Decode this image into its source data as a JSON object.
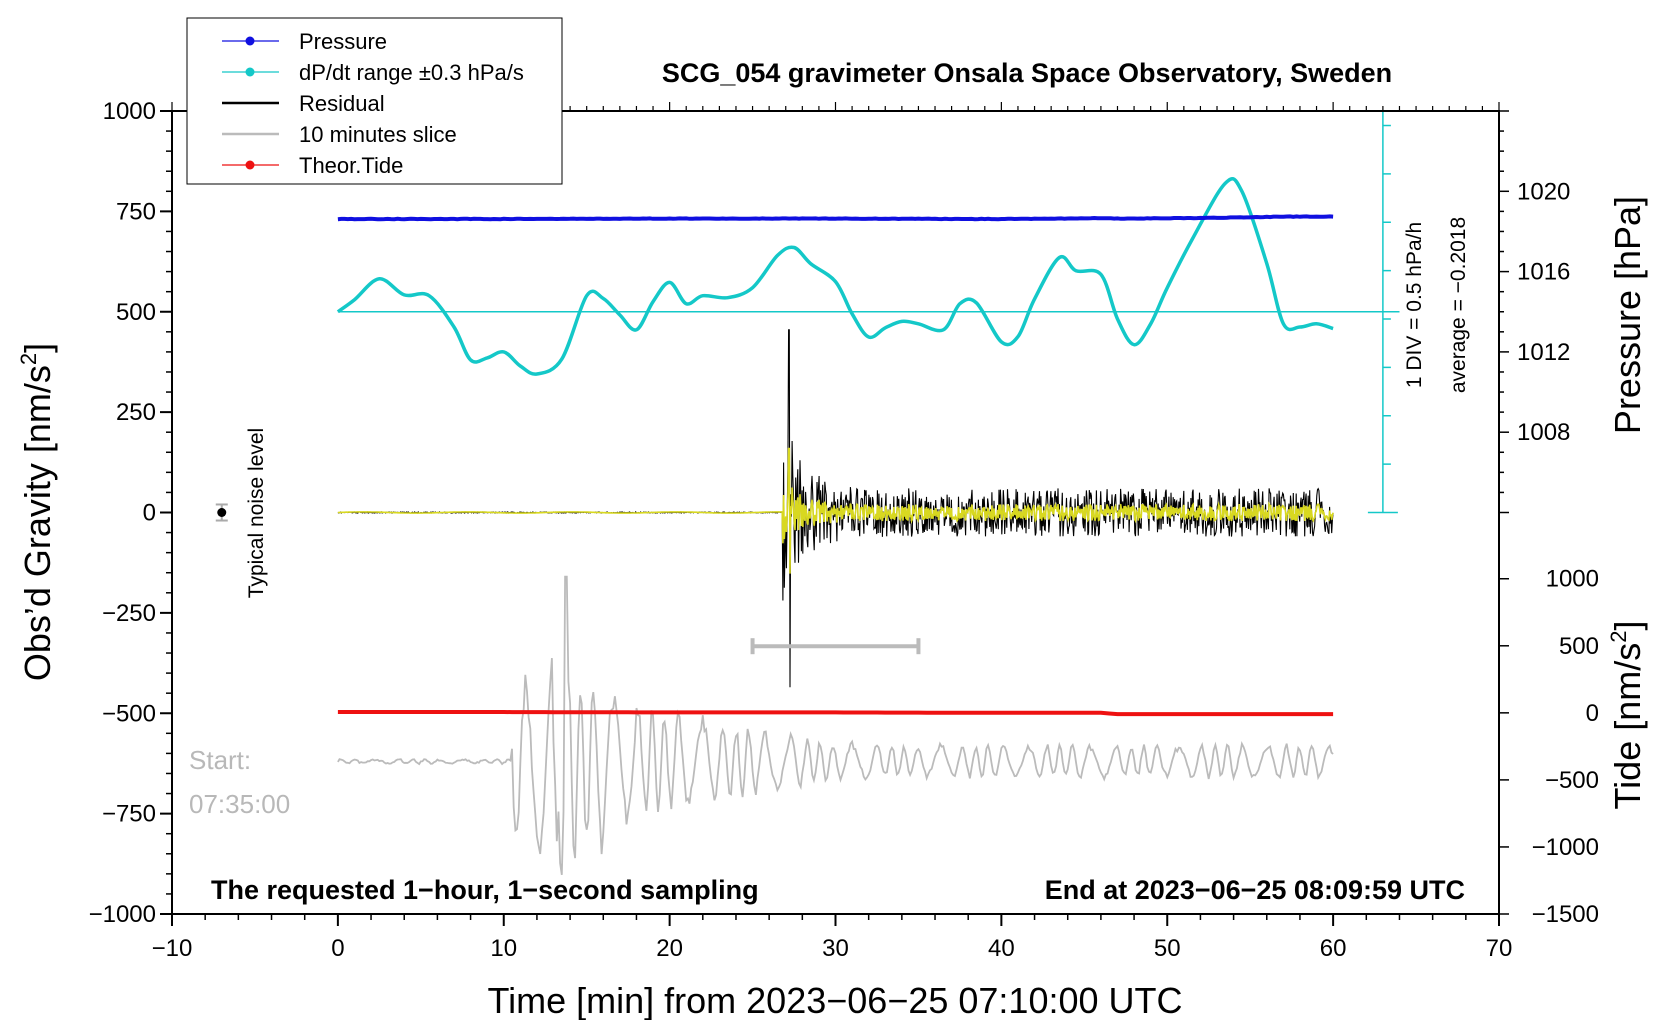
{
  "chart_data": {
    "type": "line",
    "title": "SCG_054 gravimeter Onsala Space Observatory, Sweden",
    "xlabel": "Time [min] from 2023−06−25 07:10:00 UTC",
    "ylabel_left": "Obs’d Gravity [nm/s",
    "ylabel_left_sup": "2",
    "ylabel_left_close": "]",
    "ylabel_right_top": "Pressure [hPa]",
    "ylabel_right_bottom": "Tide [nm/s",
    "ylabel_right_bottom_sup": "2",
    "ylabel_right_bottom_close": "]",
    "xlim": [
      -10,
      70
    ],
    "ylim_left": [
      -1000,
      1000
    ],
    "x_ticks": [
      -10,
      0,
      10,
      20,
      30,
      40,
      50,
      60,
      70
    ],
    "x_tick_labels": [
      "−10",
      "0",
      "10",
      "20",
      "30",
      "40",
      "50",
      "60",
      "70"
    ],
    "y_left_ticks": [
      1000,
      750,
      500,
      250,
      0,
      -250,
      -500,
      -750,
      -1000
    ],
    "y_left_tick_labels": [
      "1000",
      "750",
      "500",
      "250",
      "0",
      "−250",
      "−500",
      "−750",
      "−1000"
    ],
    "pressure_axis": {
      "ticks": [
        1020,
        1016,
        1012,
        1008
      ],
      "tick_labels": [
        "1020",
        "1016",
        "1012",
        "1008"
      ],
      "range_hpa": [
        1004,
        1024
      ]
    },
    "tide_axis": {
      "ticks": [
        1000,
        500,
        0,
        -500,
        -1000,
        -1500
      ],
      "tick_labels": [
        "1000",
        "500",
        "0",
        "−500",
        "−1000",
        "−1500"
      ],
      "range": [
        -1500,
        1000
      ]
    },
    "legend": [
      {
        "label": "Pressure",
        "color": "#1010e0",
        "marker": true
      },
      {
        "label": "dP/dt range ±0.3 hPa/s",
        "color": "#14c8c8",
        "marker": true
      },
      {
        "label": "Residual",
        "color": "#000000",
        "marker": false
      },
      {
        "label": "10 minutes slice",
        "color": "#bbbbbb",
        "marker": false
      },
      {
        "label": "Theor.Tide",
        "color": "#ee1111",
        "marker": true
      }
    ],
    "annotations": {
      "bottom_left": "The requested 1−hour, 1−second sampling",
      "bottom_right": "End at 2023−06−25 08:09:59 UTC",
      "start_label": "Start:",
      "start_time": "07:35:00",
      "noise_label": "Typical noise level",
      "div_label": "1 DIV = 0.5 hPa/h",
      "average_label": "average = −0.2018"
    },
    "slice_window_min": [
      25,
      35
    ],
    "noise_bar": {
      "x": -7,
      "y": 0,
      "half_range": 20
    },
    "series": {
      "pressure": {
        "name": "Pressure",
        "color": "#1010e0",
        "x": [
          0,
          10,
          20,
          30,
          40,
          46,
          47,
          50,
          55,
          57,
          60
        ],
        "y": [
          731,
          731,
          732,
          732,
          731,
          733,
          732,
          733,
          735,
          737,
          737
        ]
      },
      "dpdt": {
        "name": "dP/dt range ±0.3 hPa/s",
        "color": "#14c8c8",
        "baseline": 500,
        "x": [
          0,
          1,
          2.5,
          4,
          5.5,
          7,
          8,
          9,
          10,
          11,
          12,
          13.5,
          15,
          16,
          17,
          18,
          19,
          20,
          21,
          22,
          23.5,
          25,
          26.5,
          27.5,
          28.5,
          30,
          31,
          32,
          33,
          34,
          35,
          36.5,
          37.5,
          38.5,
          40,
          41,
          42,
          43.5,
          44.5,
          46,
          47,
          48,
          49,
          50,
          51.5,
          53.5,
          54.5,
          56,
          57,
          58,
          59,
          60
        ],
        "y": [
          500,
          530,
          582,
          542,
          540,
          462,
          380,
          385,
          400,
          365,
          345,
          382,
          540,
          533,
          492,
          455,
          525,
          573,
          520,
          540,
          535,
          560,
          640,
          660,
          620,
          575,
          495,
          437,
          460,
          476,
          470,
          455,
          520,
          522,
          425,
          438,
          532,
          635,
          602,
          593,
          482,
          418,
          470,
          560,
          680,
          820,
          800,
          620,
          470,
          462,
          470,
          458
        ]
      },
      "residual": {
        "name": "Residual",
        "color": "#000000",
        "event_start": 26.8,
        "peak_max": 455,
        "peak_min": -435,
        "coda_amplitude": 60
      },
      "slice": {
        "name": "10 minutes slice",
        "color": "#bbbbbb",
        "offset": -620,
        "scale": 2.0
      },
      "tide": {
        "name": "Theor.Tide",
        "color": "#ee1111",
        "x": [
          0,
          10,
          20,
          30,
          40,
          46,
          47,
          60
        ],
        "y": [
          -497,
          -497,
          -498,
          -498,
          -499,
          -499,
          -502,
          -502
        ]
      }
    }
  }
}
